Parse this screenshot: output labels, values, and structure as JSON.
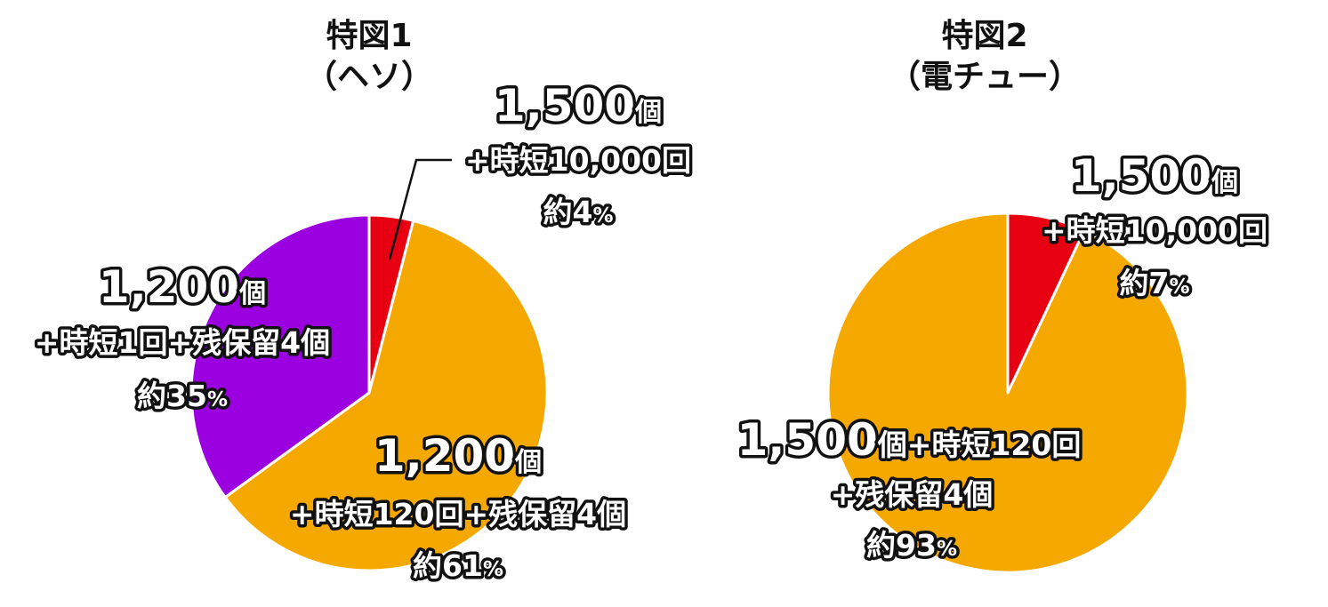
{
  "chart_data": [
    {
      "type": "pie",
      "title": "特図1",
      "subtitle": "（ヘソ）",
      "start_angle_deg": 0,
      "direction": "clockwise",
      "slices": [
        {
          "main": "1,500",
          "unit": "個",
          "detail": "+時短10,000回",
          "approx": "約",
          "percent_text": "4",
          "pct_sign": "%",
          "value": 4,
          "color": "#e60012"
        },
        {
          "main": "1,200",
          "unit": "個",
          "detail": "+時短120回+残保留4個",
          "approx": "約",
          "percent_text": "61",
          "pct_sign": "%",
          "value": 61,
          "color": "#f5a800"
        },
        {
          "main": "1,200",
          "unit": "個",
          "detail": "+時短1回+残保留4個",
          "approx": "約",
          "percent_text": "35",
          "pct_sign": "%",
          "value": 35,
          "color": "#9b00e0"
        }
      ]
    },
    {
      "type": "pie",
      "title": "特図2",
      "subtitle": "（電チュー）",
      "start_angle_deg": 0,
      "direction": "clockwise",
      "slices": [
        {
          "main": "1,500",
          "unit": "個",
          "detail": "+時短10,000回",
          "approx": "約",
          "percent_text": "7",
          "pct_sign": "%",
          "value": 7,
          "color": "#e60012"
        },
        {
          "main": "1,500",
          "unit": "個+時短120回",
          "detail": "+残保留4個",
          "approx": "約",
          "percent_text": "93",
          "pct_sign": "%",
          "value": 93,
          "color": "#f5a800"
        }
      ]
    }
  ]
}
